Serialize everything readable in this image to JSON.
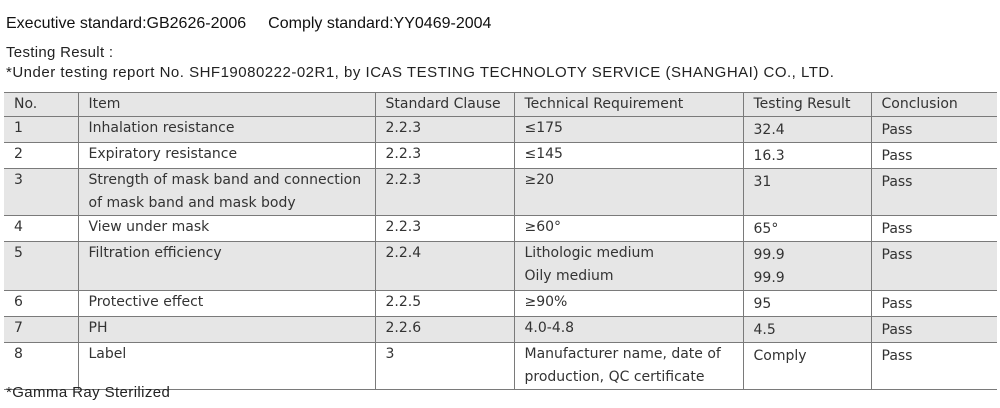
{
  "header": {
    "executive_standard": "Executive standard:GB2626-2006",
    "comply_standard": "Comply standard:YY0469-2004",
    "testing_result_label": "Testing Result :",
    "report_note": "*Under testing report No. SHF19080222-02R1, by ICAS TESTING TECHNOLOTY SERVICE (SHANGHAI) CO., LTD."
  },
  "table": {
    "columns": [
      "No.",
      "Item",
      "Standard Clause",
      "Technical Requirement",
      "Testing Result",
      "Conclusion"
    ],
    "rows": [
      {
        "no": "1",
        "item": [
          "Inhalation resistance"
        ],
        "clause": "2.2.3",
        "requirement": [
          "≤175"
        ],
        "result": [
          "32.4"
        ],
        "conclusion": "Pass"
      },
      {
        "no": "2",
        "item": [
          "Expiratory resistance"
        ],
        "clause": "2.2.3",
        "requirement": [
          "≤145"
        ],
        "result": [
          "16.3"
        ],
        "conclusion": "Pass"
      },
      {
        "no": "3",
        "item": [
          "Strength of mask band and connection",
          "of mask band and mask body"
        ],
        "clause": "2.2.3",
        "requirement": [
          "≥20"
        ],
        "result": [
          "31"
        ],
        "conclusion": "Pass"
      },
      {
        "no": "4",
        "item": [
          "View under mask"
        ],
        "clause": "2.2.3",
        "requirement": [
          "≥60°"
        ],
        "result": [
          "65°"
        ],
        "conclusion": "Pass"
      },
      {
        "no": "5",
        "item": [
          "Filtration efficiency"
        ],
        "clause": "2.2.4",
        "requirement": [
          "Lithologic medium",
          "Oily medium"
        ],
        "result": [
          "99.9",
          "99.9"
        ],
        "conclusion": "Pass"
      },
      {
        "no": "6",
        "item": [
          "Protective effect"
        ],
        "clause": "2.2.5",
        "requirement": [
          "≥90%"
        ],
        "result": [
          "95"
        ],
        "conclusion": "Pass"
      },
      {
        "no": "7",
        "item": [
          "PH"
        ],
        "clause": "2.2.6",
        "requirement": [
          "4.0-4.8"
        ],
        "result": [
          "4.5"
        ],
        "conclusion": "Pass"
      },
      {
        "no": "8",
        "item": [
          "Label"
        ],
        "clause": "3",
        "requirement": [
          "Manufacturer name, date of",
          "production, QC certificate"
        ],
        "result": [
          "Comply"
        ],
        "conclusion": "Pass"
      }
    ]
  },
  "footer": {
    "note": "*Gamma Ray Sterilized"
  },
  "colors": {
    "shade": "#e6e6e6",
    "border": "#7a7a7a",
    "text": "#333333"
  }
}
